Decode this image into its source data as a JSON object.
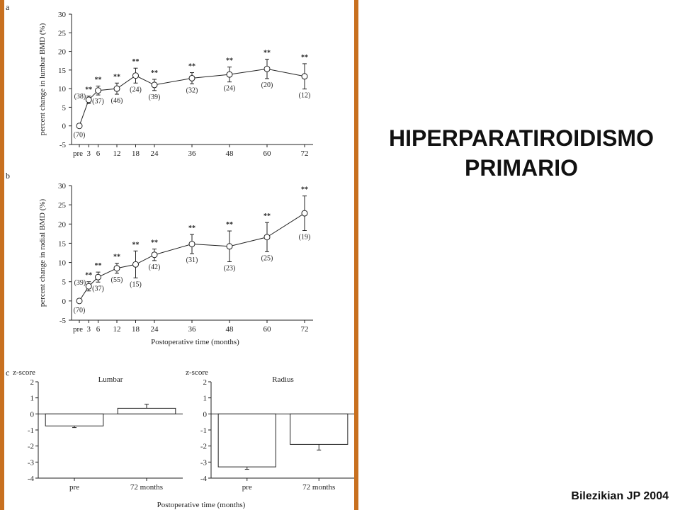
{
  "slide": {
    "title_line1": "HIPERPARATIROIDISMO",
    "title_line2": "PRIMARIO",
    "credit": "Bilezikian JP 2004"
  },
  "colors": {
    "frame": "#c8701f",
    "ink": "#222222"
  },
  "chart_data": [
    {
      "panel": "a",
      "type": "line",
      "xlabel": "",
      "ylabel": "percent change in lumbar BMD (%)",
      "x_ticks": [
        "pre",
        "3",
        "6",
        "12",
        "18",
        "24",
        "36",
        "48",
        "60",
        "72"
      ],
      "x": [
        0,
        3,
        6,
        12,
        18,
        24,
        36,
        48,
        60,
        72
      ],
      "ylim": [
        -5,
        30
      ],
      "y_ticks": [
        -5,
        0,
        5,
        10,
        15,
        20,
        25,
        30
      ],
      "values": [
        0,
        7,
        9.5,
        10,
        13.5,
        11,
        12.8,
        13.8,
        15.3,
        13.3
      ],
      "error": [
        0,
        1,
        1.2,
        1.5,
        2,
        1.5,
        1.5,
        2,
        2.6,
        3.4
      ],
      "significance": [
        "",
        "**",
        "**",
        "**",
        "**",
        "**",
        "**",
        "**",
        "**",
        "**"
      ],
      "n_labels": [
        "(70)",
        "(38)",
        "(37)",
        "(46)",
        "(24)",
        "(39)",
        "(32)",
        "(24)",
        "(20)",
        "(12)"
      ]
    },
    {
      "panel": "b",
      "type": "line",
      "xlabel": "Postoperative time (months)",
      "ylabel": "percent change in radial BMD (%)",
      "x_ticks": [
        "pre",
        "3",
        "6",
        "12",
        "18",
        "24",
        "36",
        "48",
        "60",
        "72"
      ],
      "x": [
        0,
        3,
        6,
        12,
        18,
        24,
        36,
        48,
        60,
        72
      ],
      "ylim": [
        -5,
        30
      ],
      "y_ticks": [
        -5,
        0,
        5,
        10,
        15,
        20,
        25,
        30
      ],
      "values": [
        0,
        3.8,
        6.2,
        8.5,
        9.5,
        12,
        14.8,
        14.2,
        16.6,
        22.8
      ],
      "error": [
        0,
        1.2,
        1.3,
        1.3,
        3.5,
        1.5,
        2.5,
        4,
        3.8,
        4.5
      ],
      "significance": [
        "",
        "**",
        "**",
        "**",
        "**",
        "**",
        "**",
        "**",
        "**",
        "**"
      ],
      "n_labels": [
        "(70)",
        "(39)",
        "(37)",
        "(55)",
        "(15)",
        "(42)",
        "(31)",
        "(23)",
        "(25)",
        "(19)"
      ]
    },
    {
      "panel": "c",
      "type": "bar",
      "title": "Lumbar",
      "ylabel": "z-score",
      "categories": [
        "pre",
        "72 months"
      ],
      "values": [
        -0.75,
        0.35
      ],
      "error": [
        0.1,
        0.25
      ],
      "ylim": [
        -4,
        2
      ],
      "y_ticks": [
        -4,
        -3,
        -2,
        -1,
        0,
        1,
        2
      ]
    },
    {
      "panel": "c",
      "type": "bar",
      "title": "Radius",
      "ylabel": "z-score",
      "categories": [
        "pre",
        "72 months"
      ],
      "values": [
        -3.3,
        -1.9
      ],
      "error": [
        0.15,
        0.35
      ],
      "ylim": [
        -4,
        2
      ],
      "y_ticks": [
        -4,
        -3,
        -2,
        -1,
        0,
        1,
        2
      ]
    }
  ],
  "panel_c_xlabel": "Postoperative time (months)",
  "panel_labels": [
    "a",
    "b",
    "c"
  ]
}
